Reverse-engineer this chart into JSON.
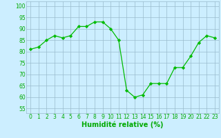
{
  "x": [
    0,
    1,
    2,
    3,
    4,
    5,
    6,
    7,
    8,
    9,
    10,
    11,
    12,
    13,
    14,
    15,
    16,
    17,
    18,
    19,
    20,
    21,
    22,
    23
  ],
  "y": [
    81,
    82,
    85,
    87,
    86,
    87,
    91,
    91,
    93,
    93,
    90,
    85,
    63,
    60,
    61,
    66,
    66,
    66,
    73,
    73,
    78,
    84,
    87,
    86
  ],
  "line_color": "#00bb00",
  "marker": "D",
  "marker_size": 2.2,
  "bg_color": "#cceeff",
  "grid_color": "#99bbcc",
  "xlabel": "Humidité relative (%)",
  "xlabel_color": "#00aa00",
  "xlabel_fontsize": 7,
  "ylabel_ticks": [
    55,
    60,
    65,
    70,
    75,
    80,
    85,
    90,
    95,
    100
  ],
  "ylim": [
    53,
    102
  ],
  "xlim": [
    -0.5,
    23.5
  ],
  "tick_fontsize": 5.5,
  "tick_color": "#00aa00"
}
